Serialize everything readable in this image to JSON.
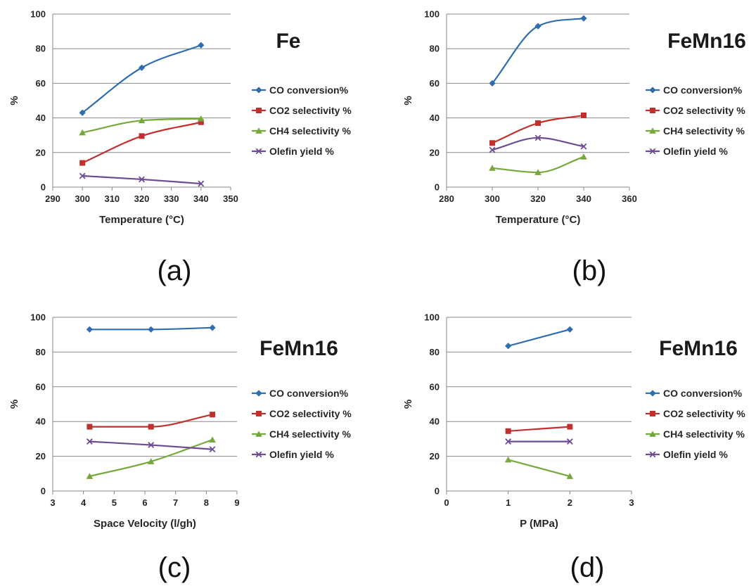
{
  "chart_data": [
    {
      "type": "line",
      "panel_label": "(a)",
      "title": "Fe",
      "xlabel": "Temperature (°C)",
      "ylabel": "%",
      "xlim": [
        290,
        350
      ],
      "xticks": [
        290,
        300,
        310,
        320,
        330,
        340,
        350
      ],
      "ylim": [
        0,
        100
      ],
      "yticks": [
        0,
        20,
        40,
        60,
        80,
        100
      ],
      "grid": "horizontal",
      "legend": "right",
      "series": [
        {
          "name": "CO conversion%",
          "color": "#2e6db0",
          "marker": "diamond",
          "x": [
            300,
            320,
            340
          ],
          "y": [
            43,
            69,
            82
          ]
        },
        {
          "name": "CO2 selectivity %",
          "color": "#c0302c",
          "marker": "square",
          "x": [
            300,
            320,
            340
          ],
          "y": [
            14,
            29.5,
            37.5
          ]
        },
        {
          "name": "CH4 selectivity %",
          "color": "#76a83c",
          "marker": "triangle",
          "x": [
            300,
            320,
            340
          ],
          "y": [
            31.5,
            38.5,
            39.5
          ]
        },
        {
          "name": "Olefin yield %",
          "color": "#6e4c94",
          "marker": "x",
          "x": [
            300,
            320,
            340
          ],
          "y": [
            6.5,
            4.5,
            2
          ]
        }
      ]
    },
    {
      "type": "line",
      "panel_label": "(b)",
      "title": "FeMn16",
      "xlabel": "Temperature (°C)",
      "ylabel": "%",
      "xlim": [
        280,
        360
      ],
      "xticks": [
        280,
        300,
        320,
        340,
        360
      ],
      "ylim": [
        0,
        100
      ],
      "yticks": [
        0,
        20,
        40,
        60,
        80,
        100
      ],
      "grid": "horizontal",
      "legend": "right",
      "series": [
        {
          "name": "CO conversion%",
          "color": "#2e6db0",
          "marker": "diamond",
          "x": [
            300,
            320,
            340
          ],
          "y": [
            60,
            93,
            97.5
          ]
        },
        {
          "name": "CO2 selectivity %",
          "color": "#c0302c",
          "marker": "square",
          "x": [
            300,
            320,
            340
          ],
          "y": [
            25.5,
            37,
            41.5
          ]
        },
        {
          "name": "CH4 selectivity %",
          "color": "#76a83c",
          "marker": "triangle",
          "x": [
            300,
            320,
            340
          ],
          "y": [
            11,
            8.5,
            17.5
          ]
        },
        {
          "name": "Olefin yield %",
          "color": "#6e4c94",
          "marker": "x",
          "x": [
            300,
            320,
            340
          ],
          "y": [
            21.5,
            28.5,
            23.5
          ]
        }
      ]
    },
    {
      "type": "line",
      "panel_label": "(c)",
      "title": "FeMn16",
      "xlabel": "Space Velocity (l/gh)",
      "ylabel": "%",
      "xlim": [
        3,
        9
      ],
      "xticks": [
        3,
        4,
        5,
        6,
        7,
        8,
        9
      ],
      "ylim": [
        0,
        100
      ],
      "yticks": [
        0,
        20,
        40,
        60,
        80,
        100
      ],
      "grid": "horizontal",
      "legend": "right",
      "series": [
        {
          "name": "CO conversion%",
          "color": "#2e6db0",
          "marker": "diamond",
          "x": [
            4.2,
            6.2,
            8.2
          ],
          "y": [
            93,
            93,
            94
          ]
        },
        {
          "name": "CO2 selectivity %",
          "color": "#c0302c",
          "marker": "square",
          "x": [
            4.2,
            6.2,
            8.2
          ],
          "y": [
            37,
            37,
            44
          ]
        },
        {
          "name": "CH4 selectivity %",
          "color": "#76a83c",
          "marker": "triangle",
          "x": [
            4.2,
            6.2,
            8.2
          ],
          "y": [
            8.5,
            17,
            29.5
          ]
        },
        {
          "name": "Olefin yield %",
          "color": "#6e4c94",
          "marker": "x",
          "x": [
            4.2,
            6.2,
            8.2
          ],
          "y": [
            28.5,
            26.5,
            24
          ]
        }
      ]
    },
    {
      "type": "line",
      "panel_label": "(d)",
      "title": "FeMn16",
      "xlabel": "P (MPa)",
      "ylabel": "%",
      "xlim": [
        0,
        3
      ],
      "xticks": [
        0,
        1,
        2,
        3
      ],
      "ylim": [
        0,
        100
      ],
      "yticks": [
        0,
        20,
        40,
        60,
        80,
        100
      ],
      "grid": "horizontal",
      "legend": "right",
      "series": [
        {
          "name": "CO conversion%",
          "color": "#2e6db0",
          "marker": "diamond",
          "x": [
            1,
            2
          ],
          "y": [
            83.5,
            93
          ]
        },
        {
          "name": "CO2 selectivity %",
          "color": "#c0302c",
          "marker": "square",
          "x": [
            1,
            2
          ],
          "y": [
            34.5,
            37
          ]
        },
        {
          "name": "CH4 selectivity %",
          "color": "#76a83c",
          "marker": "triangle",
          "x": [
            1,
            2
          ],
          "y": [
            18,
            8.5
          ]
        },
        {
          "name": "Olefin yield %",
          "color": "#6e4c94",
          "marker": "x",
          "x": [
            1,
            2
          ],
          "y": [
            28.5,
            28.5
          ]
        }
      ]
    }
  ]
}
